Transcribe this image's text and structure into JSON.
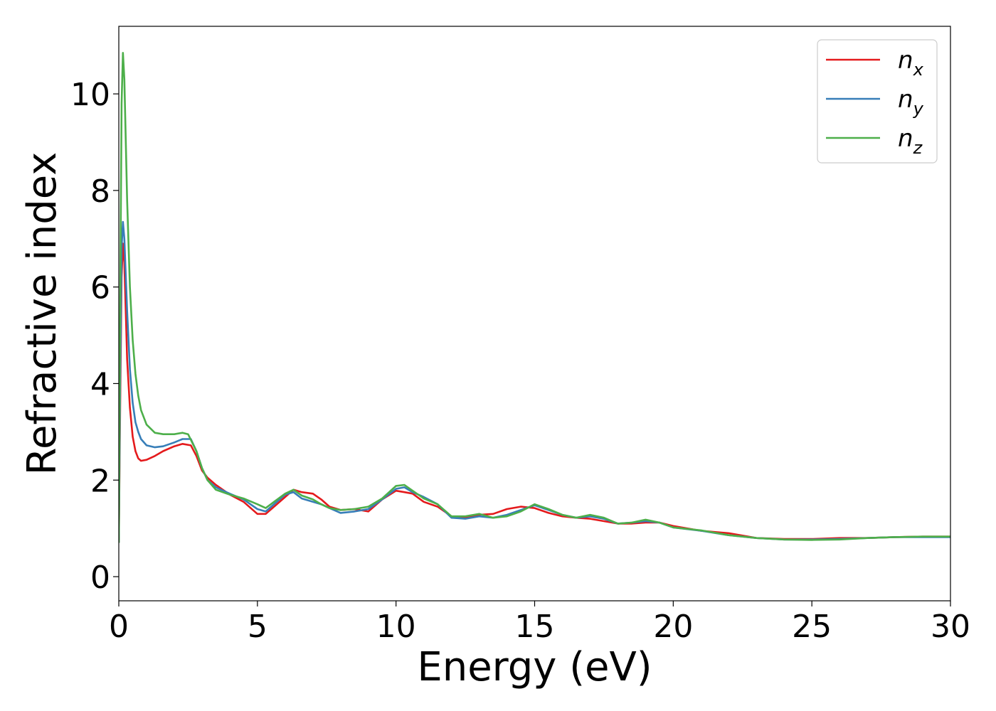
{
  "chart_data": {
    "type": "line",
    "title": "",
    "xlabel": "Energy (eV)",
    "ylabel": "Refractive index",
    "xlim": [
      0,
      30
    ],
    "ylim": [
      -0.5,
      11.4
    ],
    "xticks": [
      0,
      5,
      10,
      15,
      20,
      25,
      30
    ],
    "yticks": [
      0,
      2,
      4,
      6,
      8,
      10
    ],
    "grid": false,
    "legend_position": "top-right",
    "series": [
      {
        "name": "n",
        "subscript": "x",
        "color": "#e41a1c",
        "x": [
          0,
          0.05,
          0.1,
          0.15,
          0.2,
          0.3,
          0.4,
          0.5,
          0.6,
          0.7,
          0.8,
          1.0,
          1.3,
          1.6,
          2.0,
          2.3,
          2.6,
          2.8,
          3.0,
          3.2,
          3.5,
          4.0,
          4.5,
          5.0,
          5.3,
          5.6,
          6.0,
          6.3,
          6.6,
          7.0,
          7.3,
          7.6,
          8.0,
          8.5,
          9.0,
          9.5,
          10.0,
          10.3,
          10.6,
          11.0,
          11.5,
          12.0,
          12.5,
          13.0,
          13.5,
          14.0,
          14.5,
          15.0,
          15.5,
          16.0,
          16.5,
          17.0,
          17.5,
          18.0,
          18.5,
          19.0,
          19.5,
          20.0,
          21.0,
          22.0,
          23.0,
          24.0,
          25.0,
          26.0,
          27.0,
          28.0,
          29.0,
          30.0
        ],
        "y": [
          0.7,
          3.5,
          6.2,
          6.9,
          6.5,
          4.5,
          3.5,
          2.9,
          2.6,
          2.45,
          2.4,
          2.42,
          2.5,
          2.6,
          2.7,
          2.75,
          2.72,
          2.5,
          2.2,
          2.05,
          1.9,
          1.7,
          1.55,
          1.3,
          1.3,
          1.45,
          1.65,
          1.8,
          1.75,
          1.72,
          1.6,
          1.45,
          1.38,
          1.4,
          1.35,
          1.6,
          1.78,
          1.75,
          1.72,
          1.55,
          1.45,
          1.25,
          1.22,
          1.28,
          1.3,
          1.4,
          1.45,
          1.42,
          1.32,
          1.25,
          1.22,
          1.2,
          1.15,
          1.1,
          1.1,
          1.12,
          1.12,
          1.05,
          0.95,
          0.9,
          0.8,
          0.78,
          0.78,
          0.8,
          0.8,
          0.82,
          0.83,
          0.83
        ]
      },
      {
        "name": "n",
        "subscript": "y",
        "color": "#377eb8",
        "x": [
          0,
          0.05,
          0.1,
          0.15,
          0.2,
          0.3,
          0.4,
          0.5,
          0.6,
          0.7,
          0.8,
          1.0,
          1.3,
          1.6,
          2.0,
          2.3,
          2.6,
          2.8,
          3.0,
          3.2,
          3.5,
          4.0,
          4.5,
          5.0,
          5.3,
          5.6,
          6.0,
          6.3,
          6.6,
          7.0,
          7.3,
          7.6,
          8.0,
          8.5,
          9.0,
          9.5,
          10.0,
          10.3,
          10.6,
          11.0,
          11.5,
          12.0,
          12.5,
          13.0,
          13.5,
          14.0,
          14.5,
          15.0,
          15.5,
          16.0,
          16.5,
          17.0,
          17.5,
          18.0,
          18.5,
          19.0,
          19.5,
          20.0,
          21.0,
          22.0,
          23.0,
          24.0,
          25.0,
          26.0,
          27.0,
          28.0,
          29.0,
          30.0
        ],
        "y": [
          0.7,
          4.0,
          6.8,
          7.35,
          7.0,
          5.5,
          4.3,
          3.6,
          3.2,
          3.0,
          2.85,
          2.72,
          2.68,
          2.7,
          2.78,
          2.85,
          2.85,
          2.6,
          2.25,
          2.0,
          1.85,
          1.72,
          1.6,
          1.4,
          1.35,
          1.5,
          1.7,
          1.75,
          1.62,
          1.55,
          1.5,
          1.42,
          1.32,
          1.35,
          1.4,
          1.6,
          1.82,
          1.85,
          1.75,
          1.65,
          1.5,
          1.22,
          1.2,
          1.25,
          1.22,
          1.28,
          1.38,
          1.48,
          1.38,
          1.28,
          1.22,
          1.25,
          1.2,
          1.1,
          1.12,
          1.15,
          1.12,
          1.02,
          0.95,
          0.86,
          0.8,
          0.77,
          0.77,
          0.78,
          0.8,
          0.82,
          0.82,
          0.82
        ]
      },
      {
        "name": "n",
        "subscript": "z",
        "color": "#4daf4a",
        "x": [
          0,
          0.05,
          0.1,
          0.15,
          0.2,
          0.3,
          0.4,
          0.5,
          0.6,
          0.7,
          0.8,
          1.0,
          1.3,
          1.6,
          2.0,
          2.3,
          2.5,
          2.8,
          3.0,
          3.2,
          3.5,
          4.0,
          4.5,
          5.0,
          5.3,
          5.6,
          6.0,
          6.3,
          6.6,
          7.0,
          7.3,
          7.6,
          8.0,
          8.5,
          9.0,
          9.5,
          10.0,
          10.3,
          10.6,
          11.0,
          11.5,
          12.0,
          12.5,
          13.0,
          13.5,
          14.0,
          14.5,
          15.0,
          15.5,
          16.0,
          16.5,
          17.0,
          17.5,
          18.0,
          18.5,
          19.0,
          19.5,
          20.0,
          21.0,
          22.0,
          23.0,
          24.0,
          25.0,
          26.0,
          27.0,
          28.0,
          29.0,
          30.0
        ],
        "y": [
          0.7,
          5.5,
          9.8,
          10.85,
          10.3,
          7.8,
          6.0,
          4.9,
          4.2,
          3.75,
          3.45,
          3.15,
          2.98,
          2.95,
          2.95,
          2.98,
          2.95,
          2.6,
          2.25,
          2.0,
          1.8,
          1.7,
          1.62,
          1.5,
          1.42,
          1.55,
          1.72,
          1.8,
          1.68,
          1.6,
          1.5,
          1.42,
          1.38,
          1.4,
          1.45,
          1.62,
          1.88,
          1.9,
          1.78,
          1.62,
          1.5,
          1.25,
          1.25,
          1.3,
          1.22,
          1.25,
          1.35,
          1.5,
          1.4,
          1.28,
          1.22,
          1.28,
          1.22,
          1.1,
          1.12,
          1.18,
          1.12,
          1.02,
          0.96,
          0.86,
          0.8,
          0.77,
          0.76,
          0.77,
          0.8,
          0.82,
          0.83,
          0.83
        ]
      }
    ]
  }
}
